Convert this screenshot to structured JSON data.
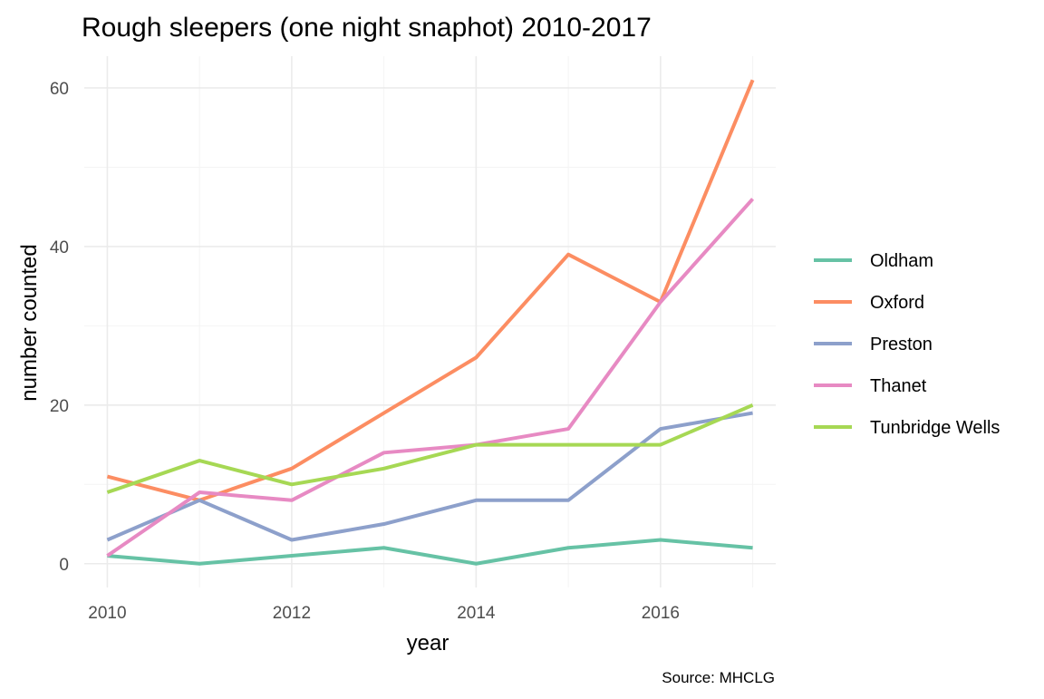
{
  "chart_data": {
    "type": "line",
    "title": "Rough sleepers (one night snaphot) 2010-2017",
    "xlabel": "year",
    "ylabel": "number counted",
    "caption": "Source: MHCLG",
    "x": [
      2010,
      2011,
      2012,
      2013,
      2014,
      2015,
      2016,
      2017
    ],
    "xlim": [
      2009.75,
      2017.25
    ],
    "ylim": [
      -3,
      64
    ],
    "x_ticks": [
      2010,
      2012,
      2014,
      2016
    ],
    "x_ticks_text": [
      "2010",
      "2012",
      "2014",
      "2016"
    ],
    "y_ticks": [
      0,
      20,
      40,
      60
    ],
    "y_ticks_text": [
      "0",
      "20",
      "40",
      "60"
    ],
    "grid": true,
    "legend_position": "right",
    "series": [
      {
        "name": "Oldham",
        "color": "#66c2a5",
        "values": [
          1,
          0,
          1,
          2,
          0,
          2,
          3,
          2
        ]
      },
      {
        "name": "Oxford",
        "color": "#fc8d62",
        "values": [
          11,
          8,
          12,
          19,
          26,
          39,
          33,
          61
        ]
      },
      {
        "name": "Preston",
        "color": "#8da0cb",
        "values": [
          3,
          8,
          3,
          5,
          8,
          8,
          17,
          19
        ]
      },
      {
        "name": "Thanet",
        "color": "#e78ac3",
        "values": [
          1,
          9,
          8,
          14,
          15,
          17,
          33,
          46
        ]
      },
      {
        "name": "Tunbridge Wells",
        "color": "#a6d854",
        "values": [
          9,
          13,
          10,
          12,
          15,
          15,
          15,
          20
        ]
      }
    ]
  }
}
